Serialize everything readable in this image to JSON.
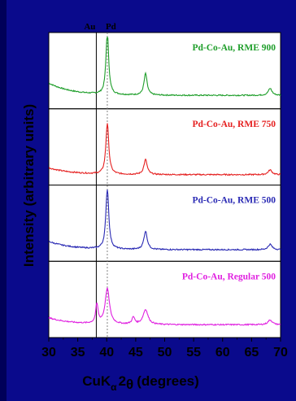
{
  "chart_data": {
    "type": "line",
    "xlabel_parts": {
      "base": "CuK",
      "sub": "α",
      "two": "2",
      "theta": "θ",
      "unit": "(degrees)"
    },
    "ylabel": "Intensity (arbitrary units)",
    "xlim": [
      30,
      70
    ],
    "xticks": [
      30,
      35,
      40,
      45,
      50,
      55,
      60,
      65,
      70
    ],
    "grid": false,
    "legend": "none",
    "reference_lines": [
      {
        "label": "Au",
        "x": 38.2,
        "style": "solid"
      },
      {
        "label": "Pd",
        "x": 40.1,
        "style": "dotted"
      }
    ],
    "series": [
      {
        "name": "Pd-Co-Au, RME 900",
        "color": "#1e9e2a",
        "baseline": 0.28,
        "peaks": [
          {
            "x": 40.1,
            "height": 0.92,
            "width": 0.28
          },
          {
            "x": 46.7,
            "height": 0.32,
            "width": 0.32
          },
          {
            "x": 68.2,
            "height": 0.1,
            "width": 0.4
          }
        ],
        "background_rise": 0.18
      },
      {
        "name": "Pd-Co-Au, RME 750",
        "color": "#e52020",
        "baseline": 0.18,
        "peaks": [
          {
            "x": 40.1,
            "height": 0.75,
            "width": 0.3
          },
          {
            "x": 46.7,
            "height": 0.22,
            "width": 0.34
          },
          {
            "x": 68.2,
            "height": 0.07,
            "width": 0.4
          }
        ],
        "background_rise": 0.1
      },
      {
        "name": "Pd-Co-Au, RME 500",
        "color": "#2a2ab4",
        "baseline": 0.22,
        "peaks": [
          {
            "x": 40.1,
            "height": 0.9,
            "width": 0.3
          },
          {
            "x": 46.7,
            "height": 0.27,
            "width": 0.35
          },
          {
            "x": 68.2,
            "height": 0.08,
            "width": 0.4
          }
        ],
        "background_rise": 0.12
      },
      {
        "name": "Pd-Co-Au, Regular 500",
        "color": "#e020e0",
        "baseline": 0.26,
        "peaks": [
          {
            "x": 38.3,
            "height": 0.28,
            "width": 0.25
          },
          {
            "x": 40.1,
            "height": 0.52,
            "width": 0.45
          },
          {
            "x": 44.6,
            "height": 0.1,
            "width": 0.3
          },
          {
            "x": 46.7,
            "height": 0.22,
            "width": 0.5
          },
          {
            "x": 68.2,
            "height": 0.07,
            "width": 0.45
          }
        ],
        "background_rise": 0.1
      }
    ]
  }
}
